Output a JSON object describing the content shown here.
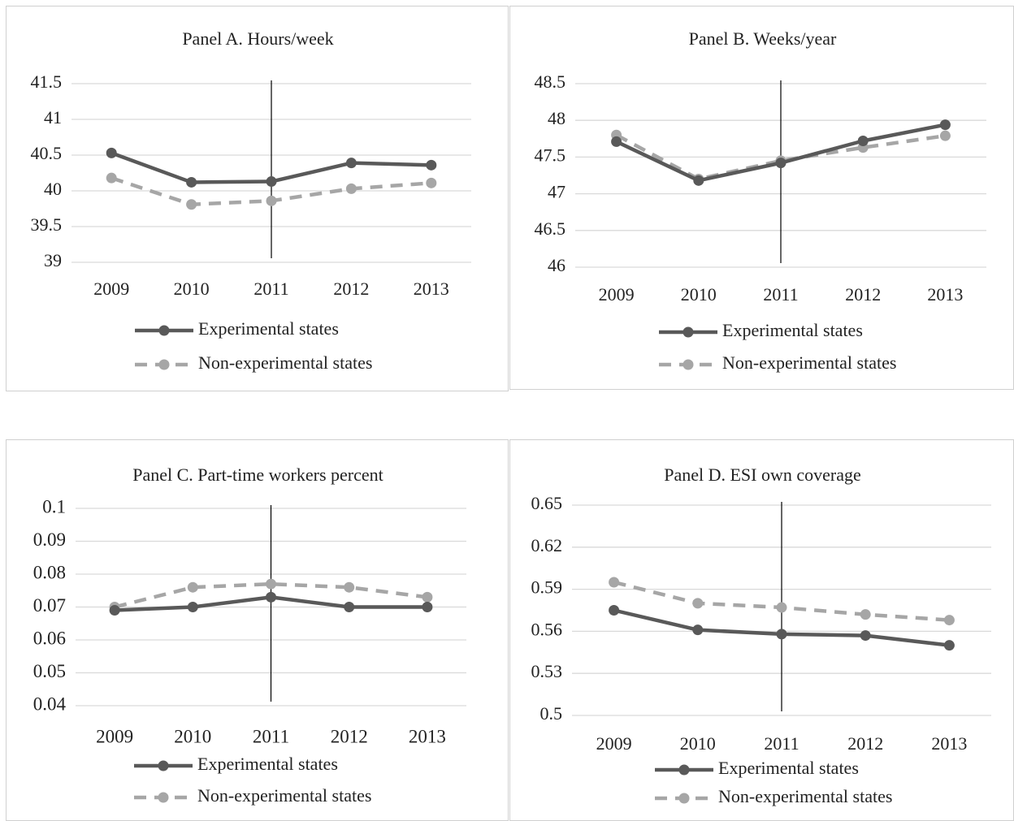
{
  "colors": {
    "experimental": "#595959",
    "non_experimental": "#a6a6a6",
    "grid": "#d9d9d9",
    "marker_line": "#000000"
  },
  "chart_data": [
    {
      "id": "a",
      "type": "line",
      "title": "Panel A. Hours/week",
      "categories": [
        "2009",
        "2010",
        "2011",
        "2012",
        "2013"
      ],
      "yticks": [
        "39",
        "39.5",
        "40",
        "40.5",
        "41",
        "41.5"
      ],
      "ylim": [
        39,
        41.5
      ],
      "grid": true,
      "legend_position": "bottom",
      "vline_at": "2011",
      "series": [
        {
          "name": "Experimental states",
          "style": "solid",
          "values": [
            40.53,
            40.12,
            40.13,
            40.39,
            40.36
          ]
        },
        {
          "name": "Non-experimental states",
          "style": "dashed",
          "values": [
            40.18,
            39.81,
            39.86,
            40.03,
            40.11
          ]
        }
      ]
    },
    {
      "id": "b",
      "type": "line",
      "title": "Panel B. Weeks/year",
      "categories": [
        "2009",
        "2010",
        "2011",
        "2012",
        "2013"
      ],
      "yticks": [
        "46",
        "46.5",
        "47",
        "47.5",
        "48",
        "48.5"
      ],
      "ylim": [
        46,
        48.5
      ],
      "grid": true,
      "legend_position": "bottom",
      "vline_at": "2011",
      "series": [
        {
          "name": "Experimental states",
          "style": "solid",
          "values": [
            47.71,
            47.18,
            47.42,
            47.72,
            47.94
          ]
        },
        {
          "name": "Non-experimental states",
          "style": "dashed",
          "values": [
            47.8,
            47.2,
            47.45,
            47.63,
            47.79
          ]
        }
      ]
    },
    {
      "id": "c",
      "type": "line",
      "title": "Panel C. Part-time workers percent",
      "categories": [
        "2009",
        "2010",
        "2011",
        "2012",
        "2013"
      ],
      "yticks": [
        "0.04",
        "0.05",
        "0.06",
        "0.07",
        "0.08",
        "0.09",
        "0.1"
      ],
      "ylim": [
        0.04,
        0.1
      ],
      "grid": true,
      "legend_position": "bottom",
      "vline_at": "2011",
      "series": [
        {
          "name": "Experimental states",
          "style": "solid",
          "values": [
            0.069,
            0.07,
            0.073,
            0.07,
            0.07
          ]
        },
        {
          "name": "Non-experimental states",
          "style": "dashed",
          "values": [
            0.07,
            0.076,
            0.077,
            0.076,
            0.073
          ]
        }
      ]
    },
    {
      "id": "d",
      "type": "line",
      "title": "Panel D. ESI own coverage",
      "categories": [
        "2009",
        "2010",
        "2011",
        "2012",
        "2013"
      ],
      "yticks": [
        "0.5",
        "0.53",
        "0.56",
        "0.59",
        "0.62",
        "0.65"
      ],
      "ylim": [
        0.5,
        0.65
      ],
      "grid": true,
      "legend_position": "bottom",
      "vline_at": "2011",
      "series": [
        {
          "name": "Experimental states",
          "style": "solid",
          "values": [
            0.575,
            0.561,
            0.558,
            0.557,
            0.55
          ]
        },
        {
          "name": "Non-experimental states",
          "style": "dashed",
          "values": [
            0.595,
            0.58,
            0.577,
            0.572,
            0.568
          ]
        }
      ]
    }
  ]
}
